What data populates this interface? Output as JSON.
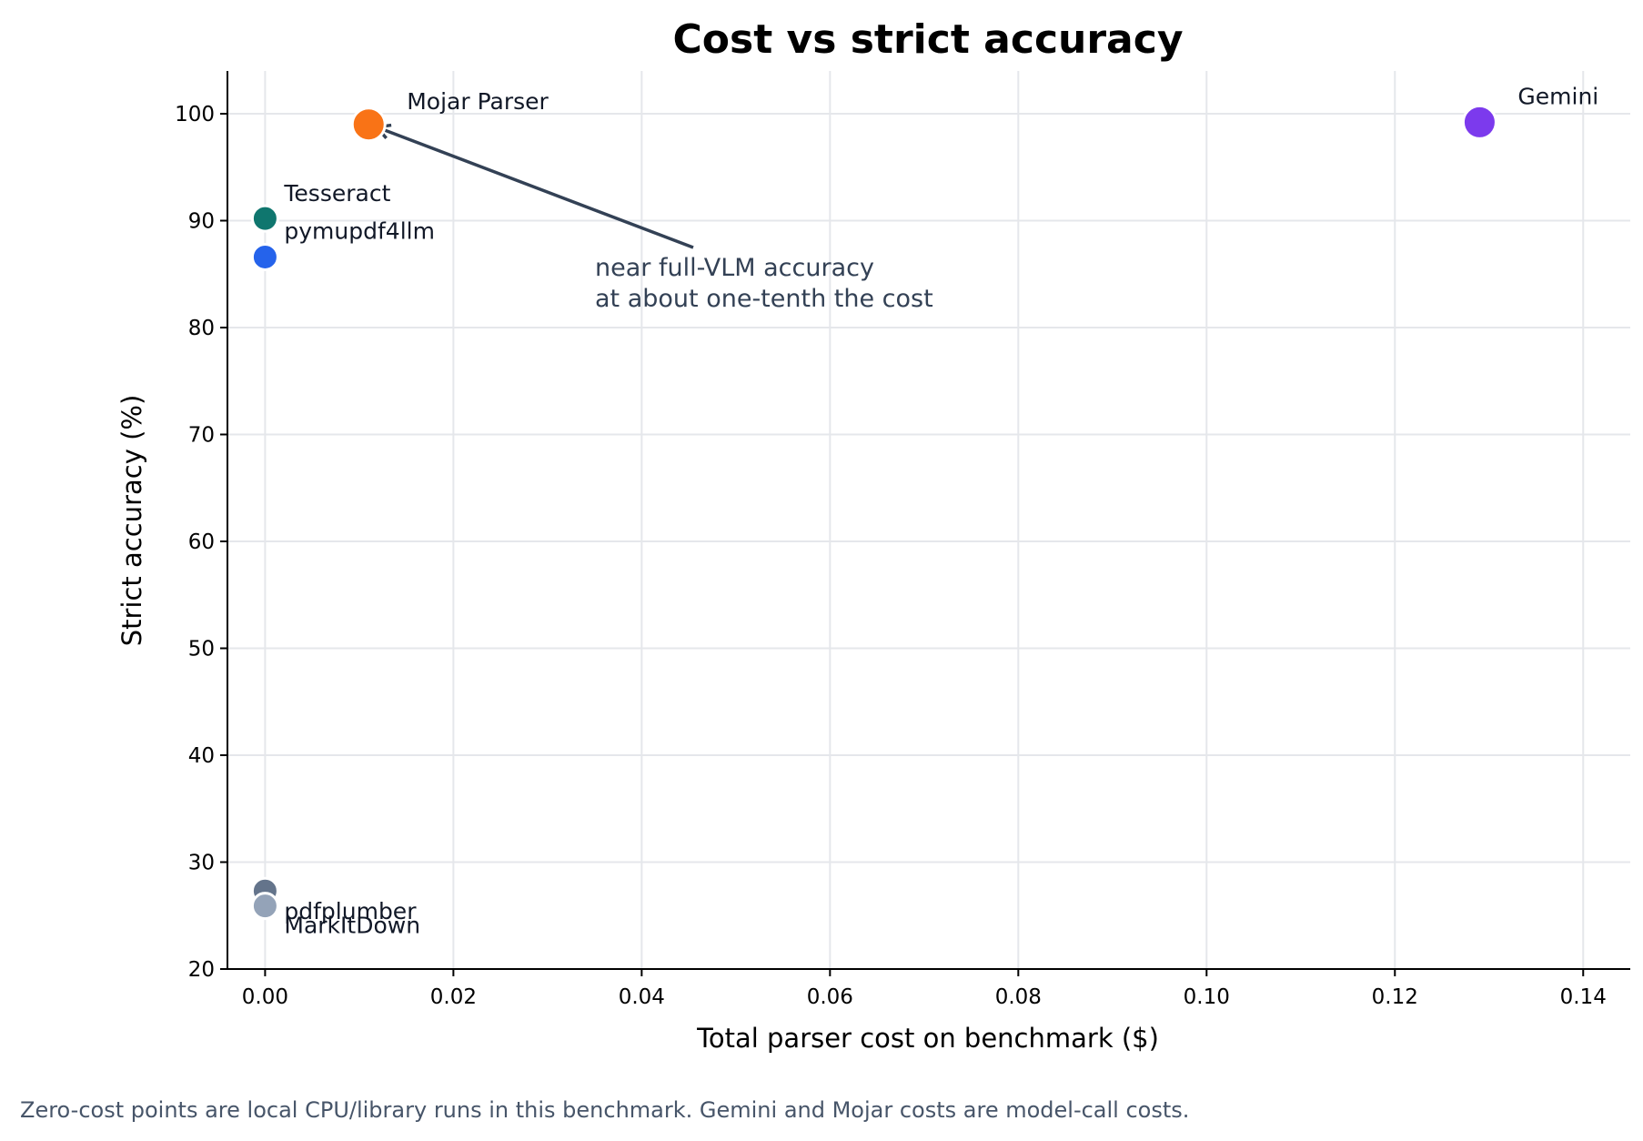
{
  "chart_data": {
    "type": "scatter",
    "title": "Cost vs strict accuracy",
    "xlabel": "Total parser cost on benchmark ($)",
    "ylabel": "Strict accuracy (%)",
    "xlim": [
      -0.004,
      0.145
    ],
    "ylim": [
      20,
      104
    ],
    "xticks": [
      0.0,
      0.02,
      0.04,
      0.06,
      0.08,
      0.1,
      0.12,
      0.14
    ],
    "xtick_labels": [
      "0.00",
      "0.02",
      "0.04",
      "0.06",
      "0.08",
      "0.10",
      "0.12",
      "0.14"
    ],
    "yticks": [
      20,
      30,
      40,
      50,
      60,
      70,
      80,
      90,
      100
    ],
    "ytick_labels": [
      "20",
      "30",
      "40",
      "50",
      "60",
      "70",
      "80",
      "90",
      "100"
    ],
    "grid": true,
    "points": [
      {
        "label": "Mojar Parser",
        "x": 0.011,
        "y": 99.0,
        "color": "#f97316",
        "size": "large"
      },
      {
        "label": "Gemini",
        "x": 0.129,
        "y": 99.2,
        "color": "#7c3aed",
        "size": "large"
      },
      {
        "label": "Tesseract",
        "x": 0.0,
        "y": 90.2,
        "color": "#0f766e",
        "size": "small"
      },
      {
        "label": "pymupdf4llm",
        "x": 0.0,
        "y": 86.6,
        "color": "#2563eb",
        "size": "small"
      },
      {
        "label": "pdfplumber",
        "x": 0.0,
        "y": 27.3,
        "color": "#64748b",
        "size": "small"
      },
      {
        "label": "MarkItDown",
        "x": 0.0,
        "y": 25.9,
        "color": "#94a3b8",
        "size": "small"
      }
    ],
    "annotation": {
      "lines": [
        "near full-VLM accuracy",
        "at about one-tenth the cost"
      ],
      "target": "Mojar Parser",
      "text_color": "#334155"
    }
  },
  "footnote": "Zero-cost points are local CPU/library runs in this benchmark. Gemini and Mojar costs are model-call costs."
}
